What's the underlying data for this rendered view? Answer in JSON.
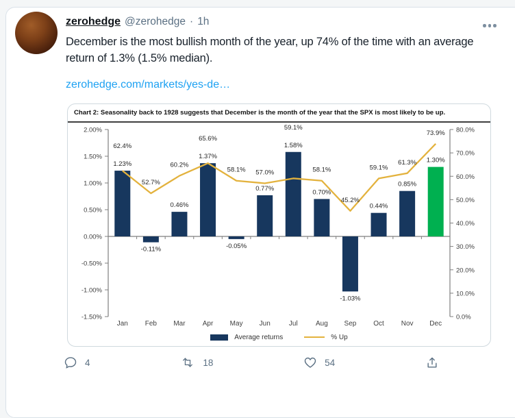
{
  "tweet": {
    "display_name": "zerohedge",
    "handle": "@zerohedge",
    "separator": "·",
    "time": "1h",
    "body": "December is the most bullish month of the year, up 74% of the time with an average return of 1.3% (1.5% median).",
    "link": "zerohedge.com/markets/yes-de…"
  },
  "actions": {
    "reply_count": "4",
    "retweet_count": "18",
    "like_count": "54"
  },
  "chart_data": {
    "type": "bar+line",
    "title": "Chart 2: Seasonality back to 1928 suggests that December is the month of the year that the SPX is most likely to be up.",
    "categories": [
      "Jan",
      "Feb",
      "Mar",
      "Apr",
      "May",
      "Jun",
      "Jul",
      "Aug",
      "Sep",
      "Oct",
      "Nov",
      "Dec"
    ],
    "series": [
      {
        "name": "Average returns",
        "type": "bar",
        "axis": "left",
        "values": [
          1.23,
          -0.11,
          0.46,
          1.37,
          -0.05,
          0.77,
          1.58,
          0.7,
          -1.03,
          0.44,
          0.85,
          1.3
        ],
        "labels": [
          "1.23%",
          "-0.11%",
          "0.46%",
          "1.37%",
          "-0.05%",
          "0.77%",
          "1.58%",
          "0.70%",
          "-1.03%",
          "0.44%",
          "0.85%",
          "1.30%"
        ]
      },
      {
        "name": "% Up",
        "type": "line",
        "axis": "right",
        "values": [
          62.4,
          52.7,
          60.2,
          65.6,
          58.1,
          57.0,
          59.1,
          58.1,
          45.2,
          59.1,
          61.3,
          73.9
        ],
        "labels": [
          "62.4%",
          "52.7%",
          "60.2%",
          "65.6%",
          "58.1%",
          "57.0%",
          "59.1%",
          "58.1%",
          "45.2%",
          "59.1%",
          "61.3%",
          "73.9%"
        ]
      }
    ],
    "left_axis_ticks": [
      "2.00%",
      "1.50%",
      "1.00%",
      "0.50%",
      "0.00%",
      "-0.50%",
      "-1.00%",
      "-1.50%"
    ],
    "right_axis_ticks": [
      "80.0%",
      "70.0%",
      "60.0%",
      "50.0%",
      "40.0%",
      "30.0%",
      "20.0%",
      "10.0%",
      "0.0%"
    ],
    "left_axis_range": [
      -1.5,
      2.0
    ],
    "right_axis_range": [
      0,
      80
    ],
    "grid": false,
    "legend_position": "bottom",
    "highlight_index": 11,
    "colors": {
      "bar": "#17375e",
      "highlight": "#00b050",
      "line": "#e3b23d"
    }
  }
}
